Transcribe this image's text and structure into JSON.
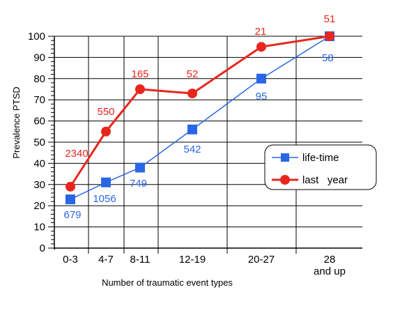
{
  "chart_data": {
    "type": "line",
    "ylabel": "Prevalence PTSD",
    "xlabel": "Number of traumatic event types",
    "ylim": [
      0,
      100
    ],
    "y_major_ticks": [
      0,
      10,
      20,
      30,
      40,
      50,
      60,
      70,
      80,
      90,
      100
    ],
    "categories": [
      "0-3",
      "4-7",
      "8-11",
      "12-19",
      "20-27",
      "28\nand up"
    ],
    "grid": true,
    "legend_position": "center-right",
    "series": [
      {
        "name": "life-time",
        "color": "#2966e6",
        "marker": "square",
        "values": [
          23,
          31,
          38,
          56,
          80,
          100
        ],
        "labels": [
          "679",
          "1056",
          "749",
          "542",
          "95",
          "58"
        ]
      },
      {
        "name": "last   year",
        "color": "#e8261e",
        "marker": "circle",
        "values": [
          29,
          55,
          75,
          73,
          95,
          100
        ],
        "labels": [
          "2340",
          "550",
          "165",
          "52",
          "21",
          "51"
        ]
      }
    ]
  }
}
